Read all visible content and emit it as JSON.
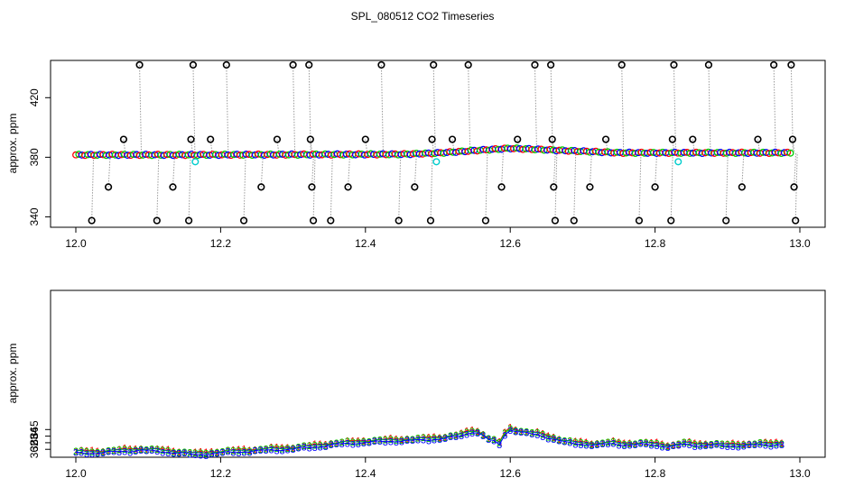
{
  "figure": {
    "title": "SPL_080512  CO2 Timeseries"
  },
  "chart_data": [
    {
      "type": "scatter",
      "name": "top",
      "title": "SPL_080512  CO2 Timeseries",
      "xlabel": "",
      "ylabel": "approx. ppm",
      "xlim": [
        12.0,
        13.0
      ],
      "ylim": [
        333,
        445
      ],
      "xticks": [
        12.0,
        12.2,
        12.4,
        12.6,
        12.8,
        13.0
      ],
      "xtick_labels": [
        "12.0",
        "12.2",
        "12.4",
        "12.6",
        "12.8",
        "13.0"
      ],
      "yticks": [
        340,
        380,
        420
      ],
      "ytick_labels": [
        "340",
        "380",
        "420"
      ],
      "baseline": [
        [
          12.0,
          381.6
        ],
        [
          12.16,
          381.6
        ],
        [
          12.3,
          381.8
        ],
        [
          12.45,
          382.0
        ],
        [
          12.5,
          382.8
        ],
        [
          12.56,
          384.8
        ],
        [
          12.6,
          386.0
        ],
        [
          12.66,
          384.8
        ],
        [
          12.75,
          383.0
        ],
        [
          12.9,
          383.0
        ],
        [
          12.99,
          383.0
        ]
      ],
      "series_baseline": [
        {
          "name": "1",
          "color": "#ff0000"
        },
        {
          "name": "2",
          "color": "#00cd00"
        },
        {
          "name": "3",
          "color": "#0000ff"
        }
      ],
      "outliers": [
        {
          "x": 12.022,
          "y": 337.5
        },
        {
          "x": 12.045,
          "y": 360
        },
        {
          "x": 12.066,
          "y": 392
        },
        {
          "x": 12.088,
          "y": 442
        },
        {
          "x": 12.112,
          "y": 337.5
        },
        {
          "x": 12.134,
          "y": 360
        },
        {
          "x": 12.156,
          "y": 337.5
        },
        {
          "x": 12.159,
          "y": 392
        },
        {
          "x": 12.162,
          "y": 442
        },
        {
          "x": 12.186,
          "y": 392
        },
        {
          "x": 12.208,
          "y": 442
        },
        {
          "x": 12.232,
          "y": 337.5
        },
        {
          "x": 12.256,
          "y": 360
        },
        {
          "x": 12.278,
          "y": 392
        },
        {
          "x": 12.3,
          "y": 442
        },
        {
          "x": 12.322,
          "y": 442
        },
        {
          "x": 12.324,
          "y": 392
        },
        {
          "x": 12.326,
          "y": 360
        },
        {
          "x": 12.328,
          "y": 337.5
        },
        {
          "x": 12.352,
          "y": 337.5
        },
        {
          "x": 12.376,
          "y": 360
        },
        {
          "x": 12.4,
          "y": 392
        },
        {
          "x": 12.422,
          "y": 442
        },
        {
          "x": 12.446,
          "y": 337.5
        },
        {
          "x": 12.468,
          "y": 360
        },
        {
          "x": 12.49,
          "y": 337.5
        },
        {
          "x": 12.492,
          "y": 392
        },
        {
          "x": 12.494,
          "y": 442
        },
        {
          "x": 12.52,
          "y": 392
        },
        {
          "x": 12.542,
          "y": 442
        },
        {
          "x": 12.566,
          "y": 337.5
        },
        {
          "x": 12.588,
          "y": 360
        },
        {
          "x": 12.61,
          "y": 392
        },
        {
          "x": 12.634,
          "y": 442
        },
        {
          "x": 12.656,
          "y": 442
        },
        {
          "x": 12.658,
          "y": 392
        },
        {
          "x": 12.66,
          "y": 360
        },
        {
          "x": 12.662,
          "y": 337.5
        },
        {
          "x": 12.688,
          "y": 337.5
        },
        {
          "x": 12.71,
          "y": 360
        },
        {
          "x": 12.732,
          "y": 392
        },
        {
          "x": 12.754,
          "y": 442
        },
        {
          "x": 12.778,
          "y": 337.5
        },
        {
          "x": 12.8,
          "y": 360
        },
        {
          "x": 12.822,
          "y": 337.5
        },
        {
          "x": 12.824,
          "y": 392
        },
        {
          "x": 12.826,
          "y": 442
        },
        {
          "x": 12.852,
          "y": 392
        },
        {
          "x": 12.874,
          "y": 442
        },
        {
          "x": 12.898,
          "y": 337.5
        },
        {
          "x": 12.92,
          "y": 360
        },
        {
          "x": 12.942,
          "y": 392
        },
        {
          "x": 12.964,
          "y": 442
        },
        {
          "x": 12.988,
          "y": 442
        },
        {
          "x": 12.99,
          "y": 392
        },
        {
          "x": 12.992,
          "y": 360
        },
        {
          "x": 12.994,
          "y": 337.5
        }
      ],
      "cyan_points": [
        {
          "x": 12.165,
          "y": 377
        },
        {
          "x": 12.498,
          "y": 377
        },
        {
          "x": 12.832,
          "y": 377
        }
      ]
    },
    {
      "type": "line",
      "name": "bottom",
      "xlabel": "",
      "ylabel": "approx. ppm",
      "xlim": [
        12.0,
        13.0
      ],
      "ylim": [
        360.8,
        386.1
      ],
      "xticks": [
        12.0,
        12.2,
        12.4,
        12.6,
        12.8,
        13.0
      ],
      "xtick_labels": [
        "12.0",
        "12.2",
        "12.4",
        "12.6",
        "12.8",
        "13.0"
      ],
      "yticks": [
        362,
        363,
        364,
        365
      ],
      "ytick_labels": [
        "362",
        "363",
        "364",
        "365"
      ],
      "anchors": [
        [
          12.0,
          361.6
        ],
        [
          12.03,
          361.6
        ],
        [
          12.06,
          361.8
        ],
        [
          12.09,
          362.0
        ],
        [
          12.12,
          361.8
        ],
        [
          12.15,
          361.5
        ],
        [
          12.165,
          361.3
        ],
        [
          12.2,
          361.6
        ],
        [
          12.25,
          361.9
        ],
        [
          12.3,
          362.2
        ],
        [
          12.33,
          362.5
        ],
        [
          12.36,
          362.9
        ],
        [
          12.4,
          363.2
        ],
        [
          12.44,
          363.4
        ],
        [
          12.47,
          363.5
        ],
        [
          12.5,
          363.7
        ],
        [
          12.53,
          364.1
        ],
        [
          12.55,
          364.9
        ],
        [
          12.56,
          364.4
        ],
        [
          12.57,
          363.6
        ],
        [
          12.58,
          363.2
        ],
        [
          12.585,
          362.9
        ],
        [
          12.59,
          363.6
        ],
        [
          12.595,
          365.2
        ],
        [
          12.6,
          365.1
        ],
        [
          12.605,
          365.0
        ],
        [
          12.62,
          364.6
        ],
        [
          12.64,
          364.3
        ],
        [
          12.66,
          363.7
        ],
        [
          12.68,
          363.1
        ],
        [
          12.7,
          362.9
        ],
        [
          12.72,
          362.8
        ],
        [
          12.74,
          363.0
        ],
        [
          12.76,
          362.8
        ],
        [
          12.78,
          362.9
        ],
        [
          12.8,
          362.8
        ],
        [
          12.82,
          362.5
        ],
        [
          12.84,
          362.9
        ],
        [
          12.86,
          362.7
        ],
        [
          12.88,
          362.8
        ],
        [
          12.9,
          362.6
        ],
        [
          12.92,
          362.7
        ],
        [
          12.94,
          362.8
        ],
        [
          12.96,
          362.8
        ],
        [
          12.98,
          363.0
        ]
      ],
      "series": [
        {
          "name": "1",
          "color": "#ff0000",
          "offset": 0.18
        },
        {
          "name": "2",
          "color": "#00cd00",
          "offset": 0.08
        },
        {
          "name": "3",
          "color": "#0000ff",
          "offset": -0.15
        }
      ]
    }
  ]
}
